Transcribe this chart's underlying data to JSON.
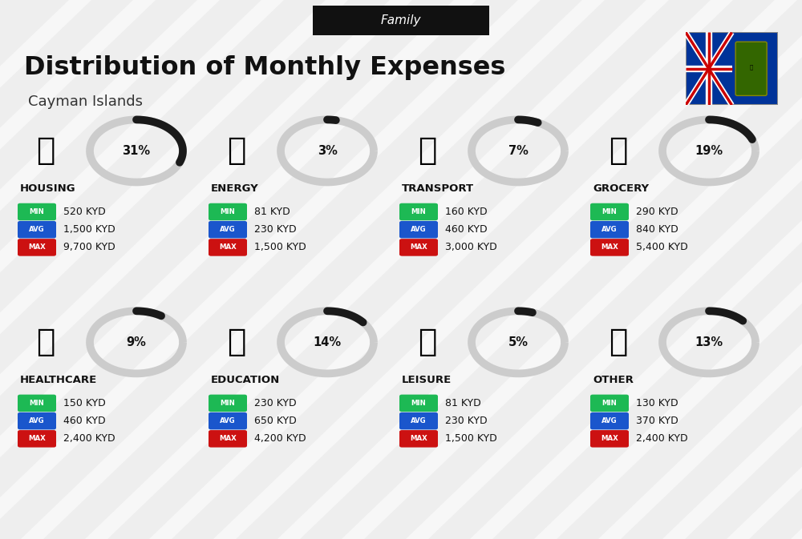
{
  "title": "Distribution of Monthly Expenses",
  "subtitle": "Cayman Islands",
  "category_label": "Family",
  "bg_color": "#eeeeee",
  "categories": [
    {
      "name": "HOUSING",
      "pct": 31,
      "min_val": "520 KYD",
      "avg_val": "1,500 KYD",
      "max_val": "9,700 KYD",
      "row": 0,
      "col": 0
    },
    {
      "name": "ENERGY",
      "pct": 3,
      "min_val": "81 KYD",
      "avg_val": "230 KYD",
      "max_val": "1,500 KYD",
      "row": 0,
      "col": 1
    },
    {
      "name": "TRANSPORT",
      "pct": 7,
      "min_val": "160 KYD",
      "avg_val": "460 KYD",
      "max_val": "3,000 KYD",
      "row": 0,
      "col": 2
    },
    {
      "name": "GROCERY",
      "pct": 19,
      "min_val": "290 KYD",
      "avg_val": "840 KYD",
      "max_val": "5,400 KYD",
      "row": 0,
      "col": 3
    },
    {
      "name": "HEALTHCARE",
      "pct": 9,
      "min_val": "150 KYD",
      "avg_val": "460 KYD",
      "max_val": "2,400 KYD",
      "row": 1,
      "col": 0
    },
    {
      "name": "EDUCATION",
      "pct": 14,
      "min_val": "230 KYD",
      "avg_val": "650 KYD",
      "max_val": "4,200 KYD",
      "row": 1,
      "col": 1
    },
    {
      "name": "LEISURE",
      "pct": 5,
      "min_val": "81 KYD",
      "avg_val": "230 KYD",
      "max_val": "1,500 KYD",
      "row": 1,
      "col": 2
    },
    {
      "name": "OTHER",
      "pct": 13,
      "min_val": "130 KYD",
      "avg_val": "370 KYD",
      "max_val": "2,400 KYD",
      "row": 1,
      "col": 3
    }
  ],
  "min_color": "#1db954",
  "avg_color": "#1a56cc",
  "max_color": "#cc1111",
  "label_text_color": "#ffffff",
  "arc_color_dark": "#1a1a1a",
  "arc_color_light": "#cccccc",
  "arc_linewidth": 7,
  "header_bg": "#111111",
  "header_text_color": "#ffffff",
  "title_color": "#111111",
  "subtitle_color": "#333333"
}
